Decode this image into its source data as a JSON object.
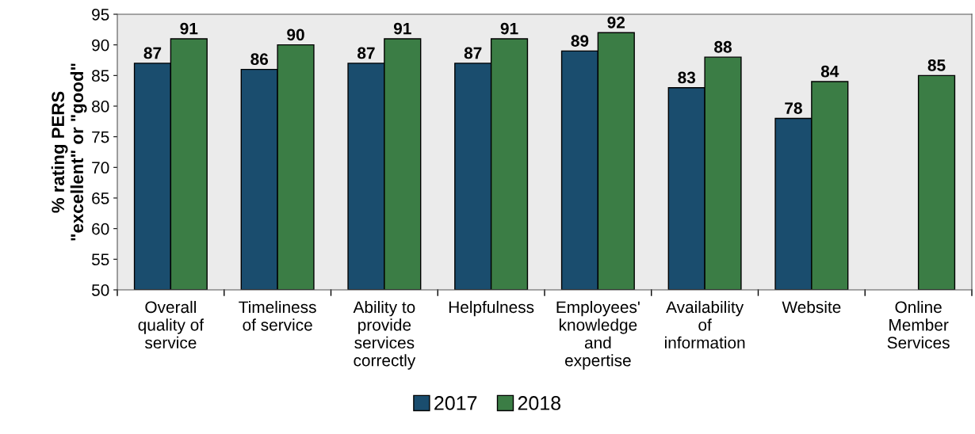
{
  "chart_data": {
    "type": "bar",
    "ylabel": "% rating PERS\n\"excellent\" or \"good\"",
    "categories": [
      "Overall\nquality of\nservice",
      "Timeliness\nof service",
      "Ability to\nprovide\nservices\ncorrectly",
      "Helpfulness",
      "Employees'\nknowledge\nand\nexpertise",
      "Availability\nof\ninformation",
      "Website",
      "Online\nMember\nServices"
    ],
    "series": [
      {
        "name": "2017",
        "color": "#1a4d6e",
        "values": [
          87,
          86,
          87,
          87,
          89,
          83,
          78,
          null
        ]
      },
      {
        "name": "2018",
        "color": "#3b7d45",
        "values": [
          91,
          90,
          91,
          91,
          92,
          88,
          84,
          85
        ]
      }
    ],
    "ylim": [
      50,
      95
    ],
    "yticks": [
      50,
      55,
      60,
      65,
      70,
      75,
      80,
      85,
      90,
      95
    ],
    "data_labels": true,
    "legend": "bottom",
    "grid": false
  }
}
